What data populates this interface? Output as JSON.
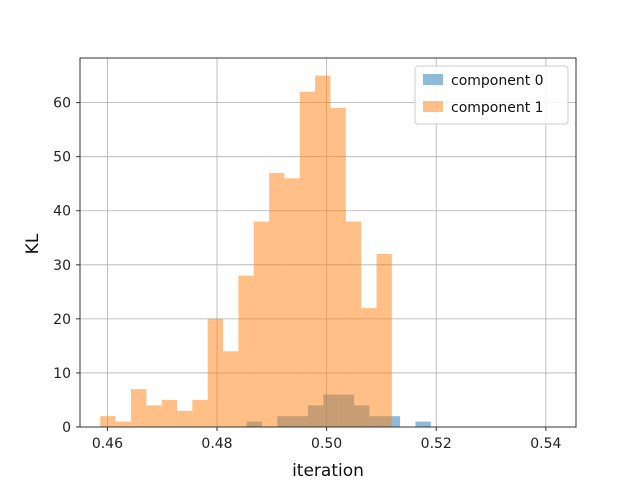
{
  "chart_data": {
    "type": "histogram",
    "title": "",
    "xlabel": "iteration",
    "ylabel": "KL",
    "xlim": [
      0.455,
      0.5455
    ],
    "ylim": [
      0,
      68.25
    ],
    "xticks": [
      0.46,
      0.48,
      0.5,
      0.52,
      0.54
    ],
    "xtick_labels": [
      "0.46",
      "0.48",
      "0.50",
      "0.52",
      "0.54"
    ],
    "yticks": [
      0,
      10,
      20,
      30,
      40,
      50,
      60
    ],
    "ytick_labels": [
      "0",
      "10",
      "20",
      "30",
      "40",
      "50",
      "60"
    ],
    "grid": true,
    "legend_position": "top-right",
    "bar_alpha": 0.5,
    "series": [
      {
        "name": "component 0",
        "color": "#1f77b4",
        "bin_start": 0.4854,
        "bin_width": 0.0028,
        "counts": [
          1,
          0,
          2,
          2,
          4,
          6,
          6,
          4,
          2,
          2,
          0,
          1,
          0,
          0,
          0,
          0,
          0,
          0,
          0,
          0,
          0,
          0,
          0,
          0,
          0,
          0,
          0,
          0,
          0,
          0,
          0,
          0,
          0,
          0,
          0,
          0,
          0,
          0,
          0,
          0,
          0,
          0,
          0,
          0,
          0,
          0,
          0,
          0,
          0,
          0,
          0,
          0,
          0,
          0,
          0,
          0,
          0,
          0,
          0,
          0,
          0,
          0,
          0,
          0,
          0,
          0,
          0,
          0,
          0,
          0,
          0,
          0,
          0,
          0,
          0,
          0,
          0,
          0,
          0,
          0
        ]
      },
      {
        "name": "component 1",
        "color": "#ff7f0e",
        "bin_start": 0.4587,
        "bin_width": 0.0028,
        "counts": [
          2,
          1,
          7,
          4,
          5,
          3,
          5,
          20,
          14,
          28,
          38,
          47,
          46,
          62,
          65,
          59,
          38,
          22,
          32
        ]
      }
    ]
  }
}
